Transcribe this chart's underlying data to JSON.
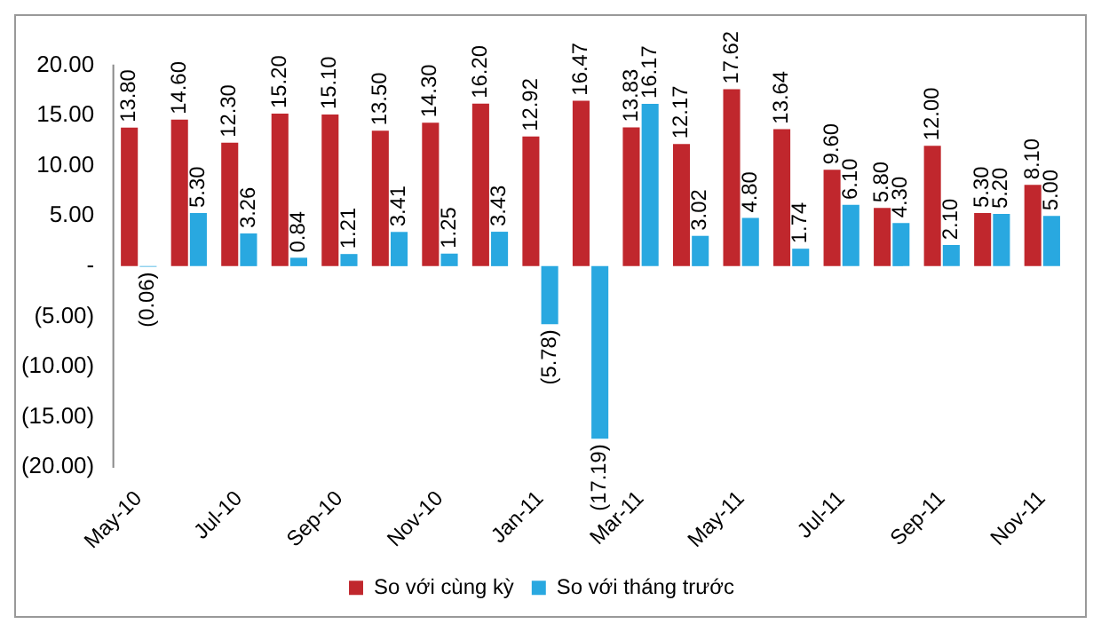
{
  "chart_data": {
    "type": "bar",
    "categories": [
      "May-10",
      null,
      "Jul-10",
      null,
      "Sep-10",
      null,
      "Nov-10",
      null,
      "Jan-11",
      null,
      "Mar-11",
      null,
      "May-11",
      null,
      "Jul-11",
      null,
      "Sep-11",
      null,
      "Nov-11"
    ],
    "series": [
      {
        "name": "So với cùng kỳ",
        "color": "#c0272d",
        "values": [
          13.8,
          14.6,
          12.3,
          15.2,
          15.1,
          13.5,
          14.3,
          16.2,
          12.92,
          16.47,
          13.83,
          12.17,
          17.62,
          13.64,
          9.6,
          5.8,
          12.0,
          5.3,
          8.1
        ],
        "value_labels": [
          "13.80",
          "14.60",
          "12.30",
          "15.20",
          "15.10",
          "13.50",
          "14.30",
          "16.20",
          "12.92",
          "16.47",
          "13.83",
          "12.17",
          "17.62",
          "13.64",
          "9.60",
          "5.80",
          "12.00",
          "5.30",
          "8.10"
        ]
      },
      {
        "name": "So với tháng trước",
        "color": "#29a8e0",
        "values": [
          -0.06,
          5.3,
          3.26,
          0.84,
          1.21,
          3.41,
          1.25,
          3.43,
          -5.78,
          -17.19,
          16.17,
          3.02,
          4.8,
          1.74,
          6.1,
          4.3,
          2.1,
          5.2,
          5.0
        ],
        "value_labels": [
          "(0.06)",
          "5.30",
          "3.26",
          "0.84",
          "1.21",
          "3.41",
          "1.25",
          "3.43",
          "(5.78)",
          "(17.19)",
          "16.17",
          "3.02",
          "4.80",
          "1.74",
          "6.10",
          "4.30",
          "2.10",
          "5.20",
          "5.00"
        ]
      }
    ],
    "ylim": [
      -20,
      20
    ],
    "yticks": [
      {
        "value": -20,
        "label": "(20.00)"
      },
      {
        "value": -15,
        "label": "(15.00)"
      },
      {
        "value": -10,
        "label": "(10.00)"
      },
      {
        "value": -5,
        "label": "(5.00)"
      },
      {
        "value": 0,
        "label": "-"
      },
      {
        "value": 5,
        "label": "5.00"
      },
      {
        "value": 10,
        "label": "10.00"
      },
      {
        "value": 15,
        "label": "15.00"
      },
      {
        "value": 20,
        "label": "20.00"
      }
    ],
    "grid": false,
    "legend": "bottom"
  }
}
